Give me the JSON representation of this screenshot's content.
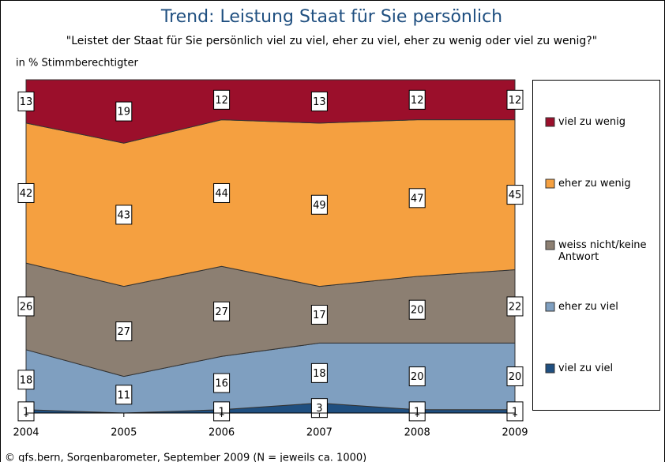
{
  "chart_data": {
    "type": "area",
    "title": "Trend: Leistung Staat für Sie persönlich",
    "subtitle": "\"Leistet der Staat für Sie persönlich viel zu viel, eher zu viel, eher zu wenig oder viel zu wenig?\"",
    "y_label": "in % Stimmberechtigter",
    "source": "© gfs.bern, Sorgenbarometer, September 2009 (N = jeweils ca. 1000)",
    "stacked": true,
    "x": [
      2004,
      2005,
      2006,
      2007,
      2008,
      2009
    ],
    "xlim": [
      2004,
      2009
    ],
    "xticks": [
      2004,
      2005,
      2006,
      2007,
      2008,
      2009
    ],
    "ylim": [
      0,
      100
    ],
    "series": [
      {
        "name": "viel zu viel",
        "color": "#1f4f80",
        "values": [
          1,
          0,
          1,
          3,
          1,
          1
        ]
      },
      {
        "name": "eher zu viel",
        "color": "#7f9fc0",
        "values": [
          18,
          11,
          16,
          18,
          20,
          20
        ]
      },
      {
        "name": "weiss nicht/keine Antwort",
        "color": "#8c7f72",
        "values": [
          26,
          27,
          27,
          17,
          20,
          22
        ]
      },
      {
        "name": "eher zu wenig",
        "color": "#f5a040",
        "values": [
          42,
          43,
          44,
          49,
          47,
          45
        ]
      },
      {
        "name": "viel zu wenig",
        "color": "#9b0f2b",
        "values": [
          13,
          19,
          12,
          13,
          12,
          12
        ]
      }
    ]
  }
}
